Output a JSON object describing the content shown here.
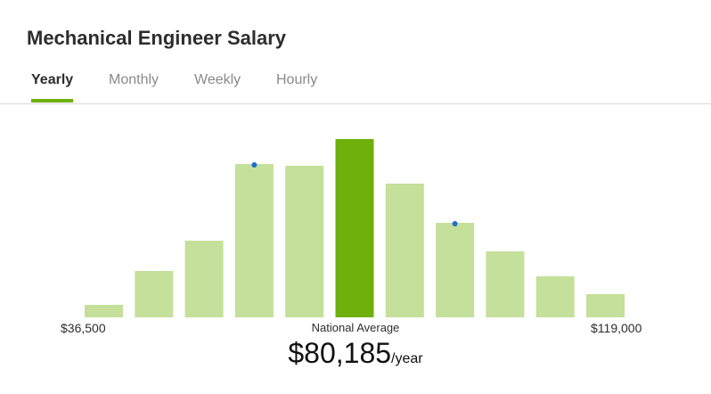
{
  "header": {
    "title": "Mechanical Engineer Salary"
  },
  "tabs": [
    {
      "label": "Yearly",
      "active": true
    },
    {
      "label": "Monthly",
      "active": false
    },
    {
      "label": "Weekly",
      "active": false
    },
    {
      "label": "Hourly",
      "active": false
    }
  ],
  "colors": {
    "accent": "#6fb00c",
    "bar": "#c4e09a",
    "highlight_bar": "#6fb00c",
    "marker": "#1c6fd1"
  },
  "chart_data": {
    "type": "bar",
    "title": "",
    "xlabel": "",
    "ylabel": "",
    "ylim": [
      0,
      100
    ],
    "bins": 11,
    "values": [
      7,
      26,
      43,
      86,
      85,
      100,
      75,
      53,
      37,
      23,
      13
    ],
    "highlight_index": 5,
    "marker_indices": [
      3,
      7
    ],
    "range_min_label": "$36,500",
    "range_max_label": "$119,000",
    "average_label": "National Average",
    "average_value": "$80,185",
    "average_unit": "/year"
  }
}
